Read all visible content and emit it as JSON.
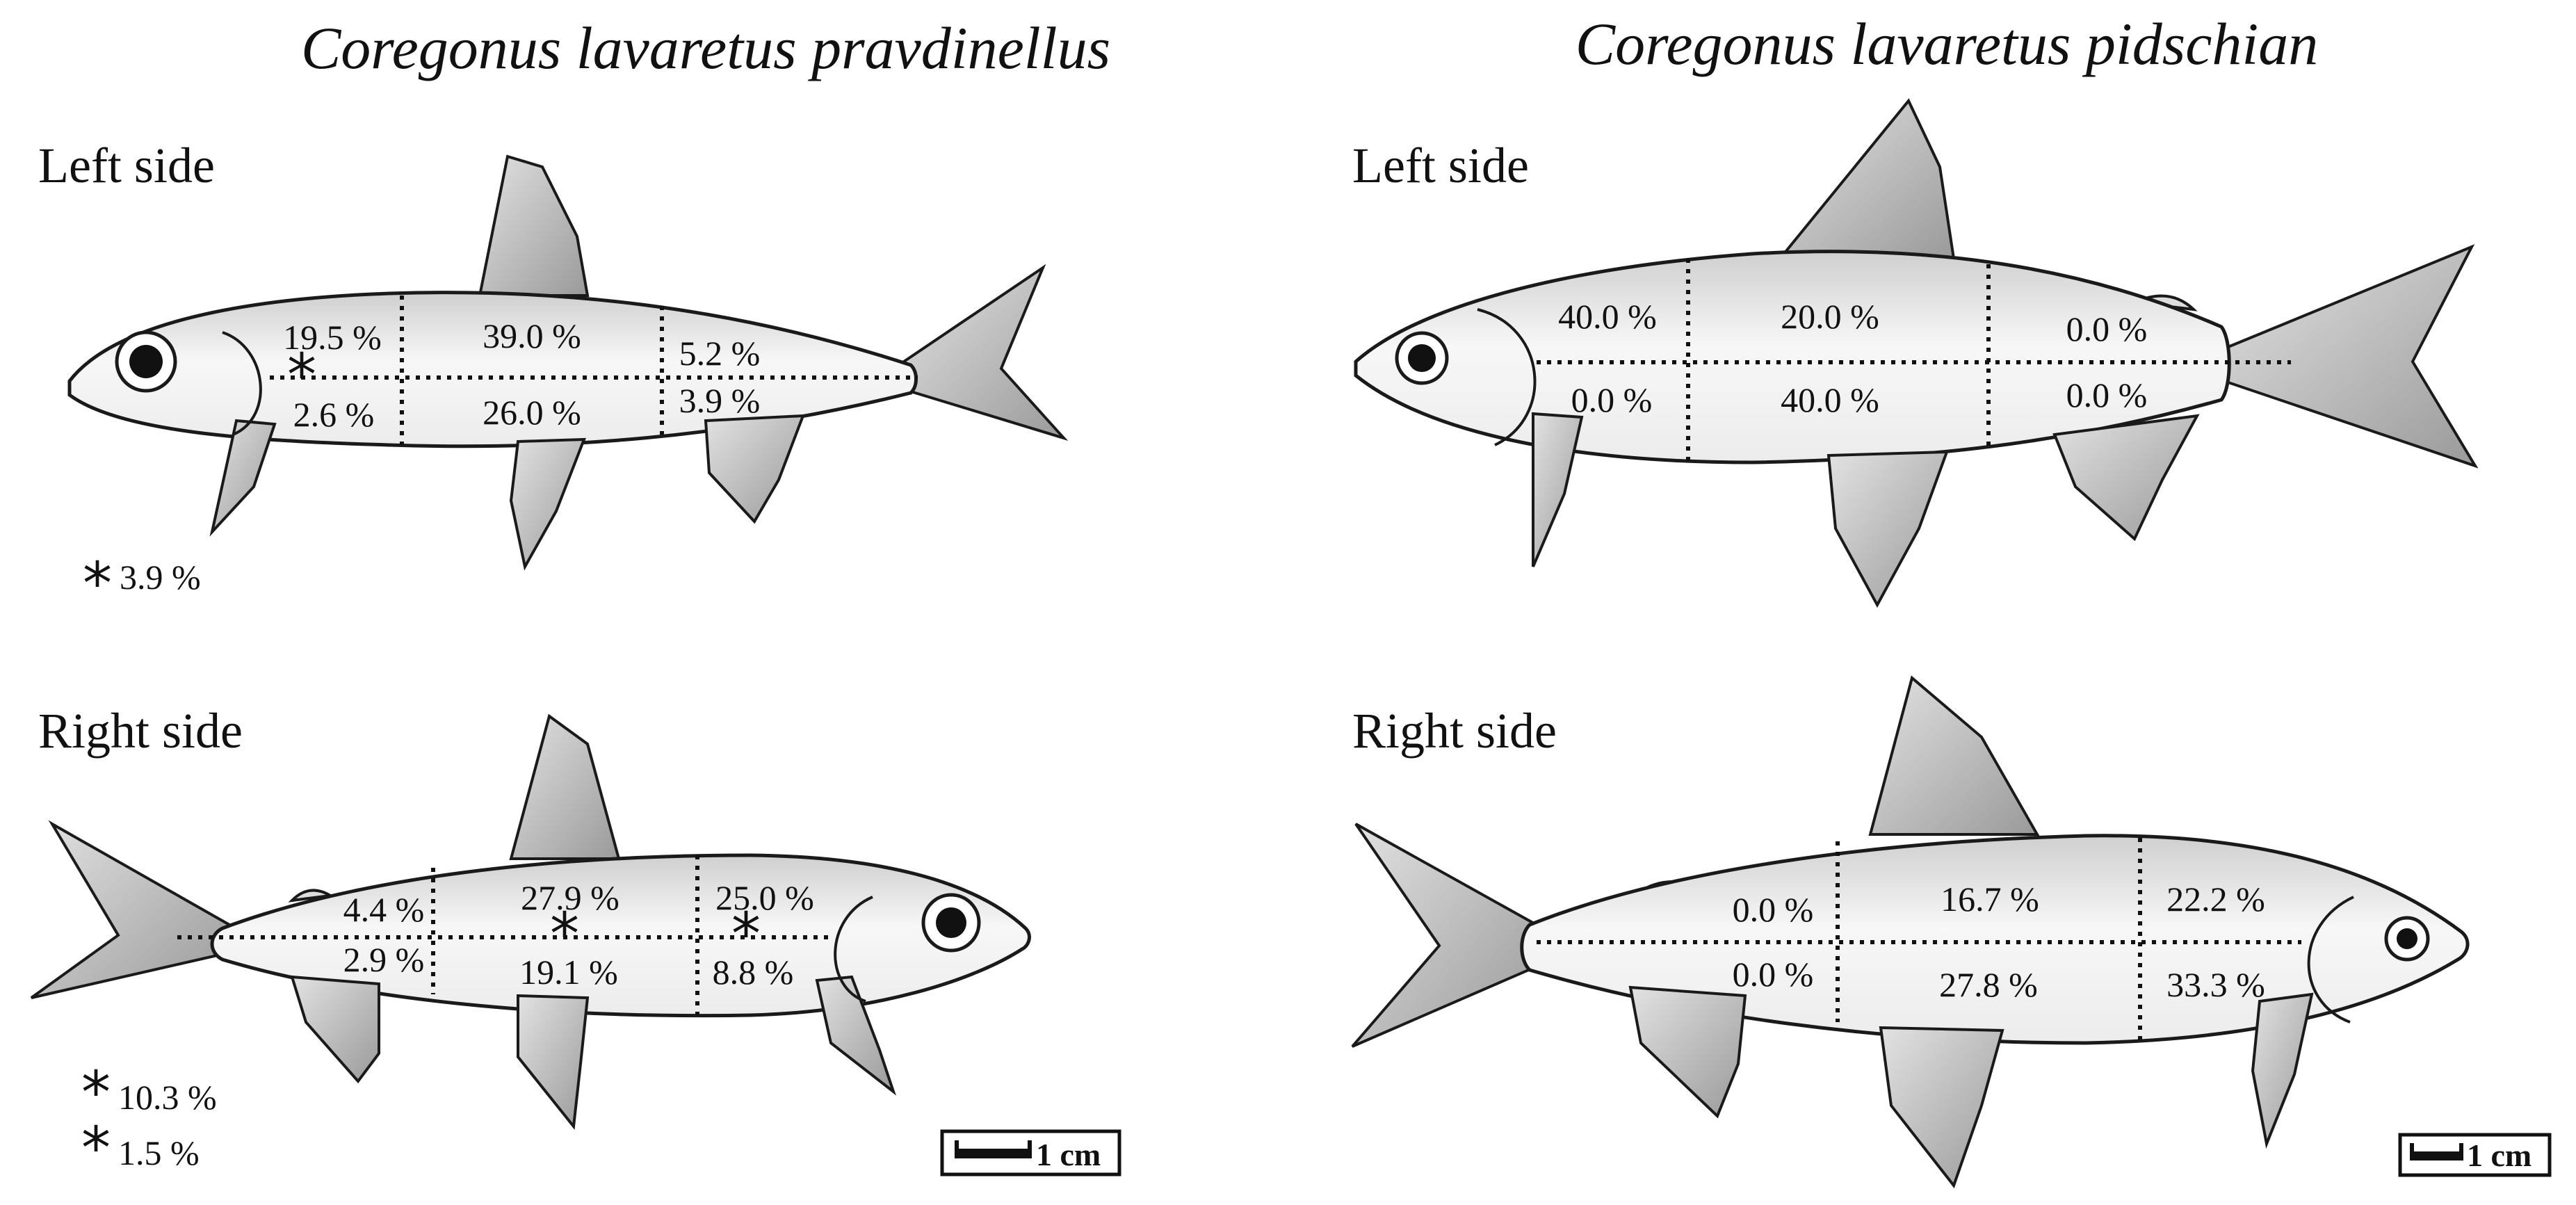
{
  "colors": {
    "pink": "#ee5fa0",
    "blue": "#5b55e0",
    "green": "#45c43c",
    "body_light": "#f7f7f7",
    "body_mid": "#cfcfcf",
    "outline": "#1a1a1a"
  },
  "panels": {
    "pravdinellus": {
      "title": "Coregonus lavaretus pravdinellus",
      "left": {
        "side_label": "Left side",
        "upper": [
          "19.5 %",
          "39.0 %",
          "5.2 %"
        ],
        "lower": [
          "2.6 %",
          "26.0 %",
          "3.9 %"
        ],
        "markers": [
          {
            "color": "pink",
            "value": "3.9 %"
          }
        ]
      },
      "right": {
        "side_label": "Right side",
        "upper": [
          "4.4 %",
          "27.9 %",
          "25.0 %"
        ],
        "lower": [
          "2.9 %",
          "19.1 %",
          "8.8 %"
        ],
        "markers": [
          {
            "color": "blue",
            "value": "10.3 %"
          },
          {
            "color": "green",
            "value": "1.5 %"
          }
        ]
      },
      "scale_bar": "1 cm"
    },
    "pidschian": {
      "title": "Coregonus lavaretus pidschian",
      "left": {
        "side_label": "Left side",
        "upper": [
          "40.0 %",
          "20.0 %",
          "0.0 %"
        ],
        "lower": [
          "0.0 %",
          "40.0 %",
          "0.0 %"
        ]
      },
      "right": {
        "side_label": "Right side",
        "upper": [
          "0.0 %",
          "16.7 %",
          "22.2 %"
        ],
        "lower": [
          "0.0 %",
          "27.8 %",
          "33.3 %"
        ]
      },
      "scale_bar": "1 cm"
    }
  }
}
